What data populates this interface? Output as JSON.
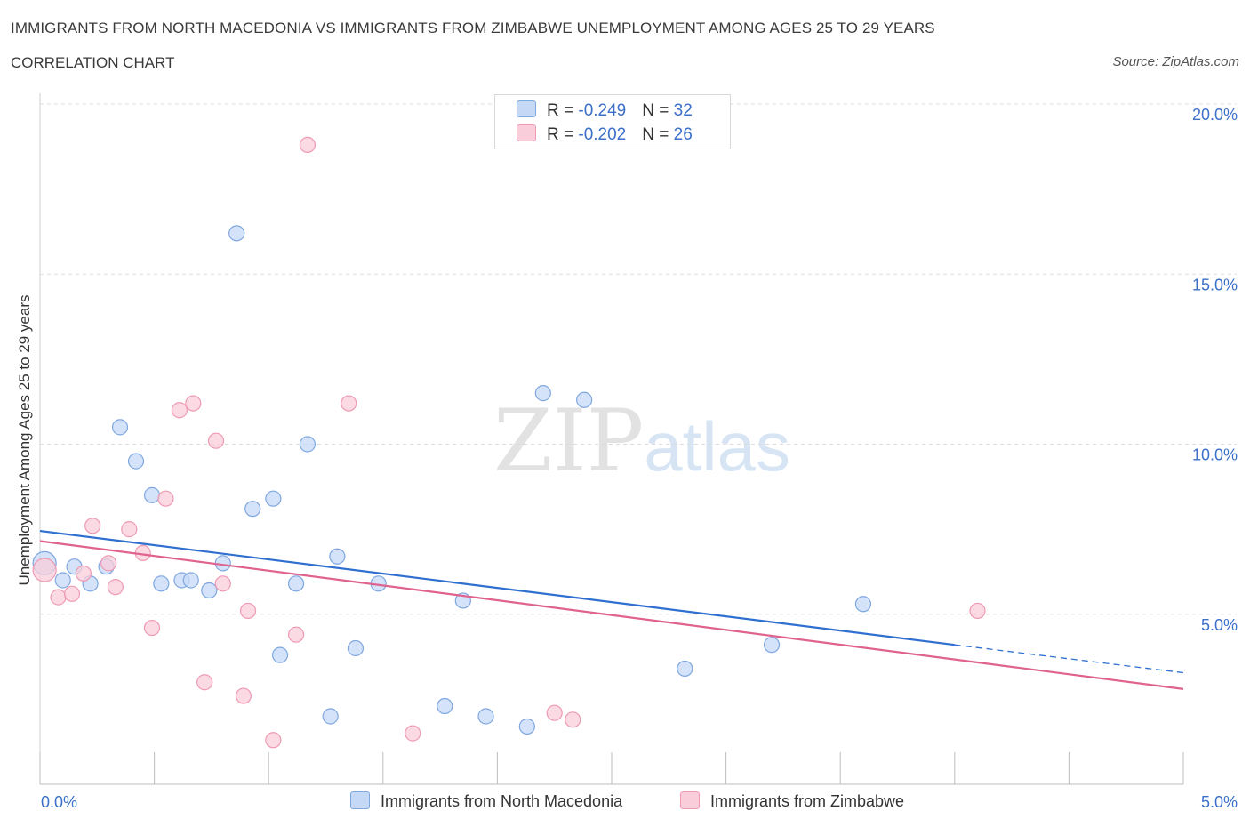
{
  "header": {
    "title": "IMMIGRANTS FROM NORTH MACEDONIA VS IMMIGRANTS FROM ZIMBABWE UNEMPLOYMENT AMONG AGES 25 TO 29 YEARS",
    "subtitle": "CORRELATION CHART",
    "source": "Source: ZipAtlas.com"
  },
  "watermark": {
    "zip": "ZIP",
    "atlas": "atlas"
  },
  "legend": {
    "r_label": "R = ",
    "n_label": "N = ",
    "series1": {
      "r": "-0.249",
      "n": "32"
    },
    "series2": {
      "r": "-0.202",
      "n": "26"
    }
  },
  "colors": {
    "series1_fill": "#c5d9f7",
    "series1_stroke": "#7fa7e0",
    "series1_line": "#2f6fcf",
    "series2_fill": "#f9cdd9",
    "series2_stroke": "#ee9ab3",
    "series2_line": "#e0628f",
    "axis_label": "#3b6fc8",
    "grid": "#dcdcdc"
  },
  "chart_data": {
    "type": "scatter",
    "title": "IMMIGRANTS FROM NORTH MACEDONIA VS IMMIGRANTS FROM ZIMBABWE UNEMPLOYMENT AMONG AGES 25 TO 29 YEARS",
    "xlabel": "",
    "ylabel": "Unemployment Among Ages 25 to 29 years",
    "xlim": [
      0,
      5
    ],
    "ylim": [
      0,
      20
    ],
    "x_tick_labels": [
      "0.0%",
      "5.0%"
    ],
    "y_ticks": [
      5,
      10,
      15,
      20
    ],
    "y_tick_labels": [
      "5.0%",
      "10.0%",
      "15.0%",
      "20.0%"
    ],
    "grid": true,
    "series": [
      {
        "name": "Immigrants from North Macedonia",
        "points": [
          {
            "x": 0.02,
            "y": 6.5
          },
          {
            "x": 0.1,
            "y": 6.0
          },
          {
            "x": 0.15,
            "y": 6.4
          },
          {
            "x": 0.22,
            "y": 5.9
          },
          {
            "x": 0.29,
            "y": 6.4
          },
          {
            "x": 0.35,
            "y": 10.5
          },
          {
            "x": 0.42,
            "y": 9.5
          },
          {
            "x": 0.49,
            "y": 8.5
          },
          {
            "x": 0.53,
            "y": 5.9
          },
          {
            "x": 0.62,
            "y": 6.0
          },
          {
            "x": 0.66,
            "y": 6.0
          },
          {
            "x": 0.74,
            "y": 5.7
          },
          {
            "x": 0.8,
            "y": 6.5
          },
          {
            "x": 0.86,
            "y": 16.2
          },
          {
            "x": 0.93,
            "y": 8.1
          },
          {
            "x": 1.02,
            "y": 8.4
          },
          {
            "x": 1.05,
            "y": 3.8
          },
          {
            "x": 1.12,
            "y": 5.9
          },
          {
            "x": 1.17,
            "y": 10.0
          },
          {
            "x": 1.27,
            "y": 2.0
          },
          {
            "x": 1.3,
            "y": 6.7
          },
          {
            "x": 1.38,
            "y": 4.0
          },
          {
            "x": 1.48,
            "y": 5.9
          },
          {
            "x": 1.77,
            "y": 2.3
          },
          {
            "x": 1.85,
            "y": 5.4
          },
          {
            "x": 1.95,
            "y": 2.0
          },
          {
            "x": 2.13,
            "y": 1.7
          },
          {
            "x": 2.2,
            "y": 11.5
          },
          {
            "x": 2.38,
            "y": 11.3
          },
          {
            "x": 2.82,
            "y": 3.4
          },
          {
            "x": 3.2,
            "y": 4.1
          },
          {
            "x": 3.6,
            "y": 5.3
          }
        ],
        "trend": {
          "x0": 0.0,
          "y0": 7.45,
          "x1": 4.0,
          "y1": 4.1,
          "dash_to_x": 5.0,
          "dash_to_y": 3.28
        }
      },
      {
        "name": "Immigrants from Zimbabwe",
        "points": [
          {
            "x": 0.02,
            "y": 6.3
          },
          {
            "x": 0.08,
            "y": 5.5
          },
          {
            "x": 0.14,
            "y": 5.6
          },
          {
            "x": 0.19,
            "y": 6.2
          },
          {
            "x": 0.23,
            "y": 7.6
          },
          {
            "x": 0.3,
            "y": 6.5
          },
          {
            "x": 0.33,
            "y": 5.8
          },
          {
            "x": 0.39,
            "y": 7.5
          },
          {
            "x": 0.45,
            "y": 6.8
          },
          {
            "x": 0.49,
            "y": 4.6
          },
          {
            "x": 0.55,
            "y": 8.4
          },
          {
            "x": 0.61,
            "y": 11.0
          },
          {
            "x": 0.67,
            "y": 11.2
          },
          {
            "x": 0.72,
            "y": 3.0
          },
          {
            "x": 0.77,
            "y": 10.1
          },
          {
            "x": 0.8,
            "y": 5.9
          },
          {
            "x": 0.89,
            "y": 2.6
          },
          {
            "x": 0.91,
            "y": 5.1
          },
          {
            "x": 1.02,
            "y": 1.3
          },
          {
            "x": 1.12,
            "y": 4.4
          },
          {
            "x": 1.17,
            "y": 18.8
          },
          {
            "x": 1.35,
            "y": 11.2
          },
          {
            "x": 1.63,
            "y": 1.5
          },
          {
            "x": 2.25,
            "y": 2.1
          },
          {
            "x": 2.33,
            "y": 1.9
          },
          {
            "x": 4.1,
            "y": 5.1
          }
        ],
        "trend": {
          "x0": 0.0,
          "y0": 7.15,
          "x1": 5.0,
          "y1": 2.8
        }
      }
    ]
  }
}
